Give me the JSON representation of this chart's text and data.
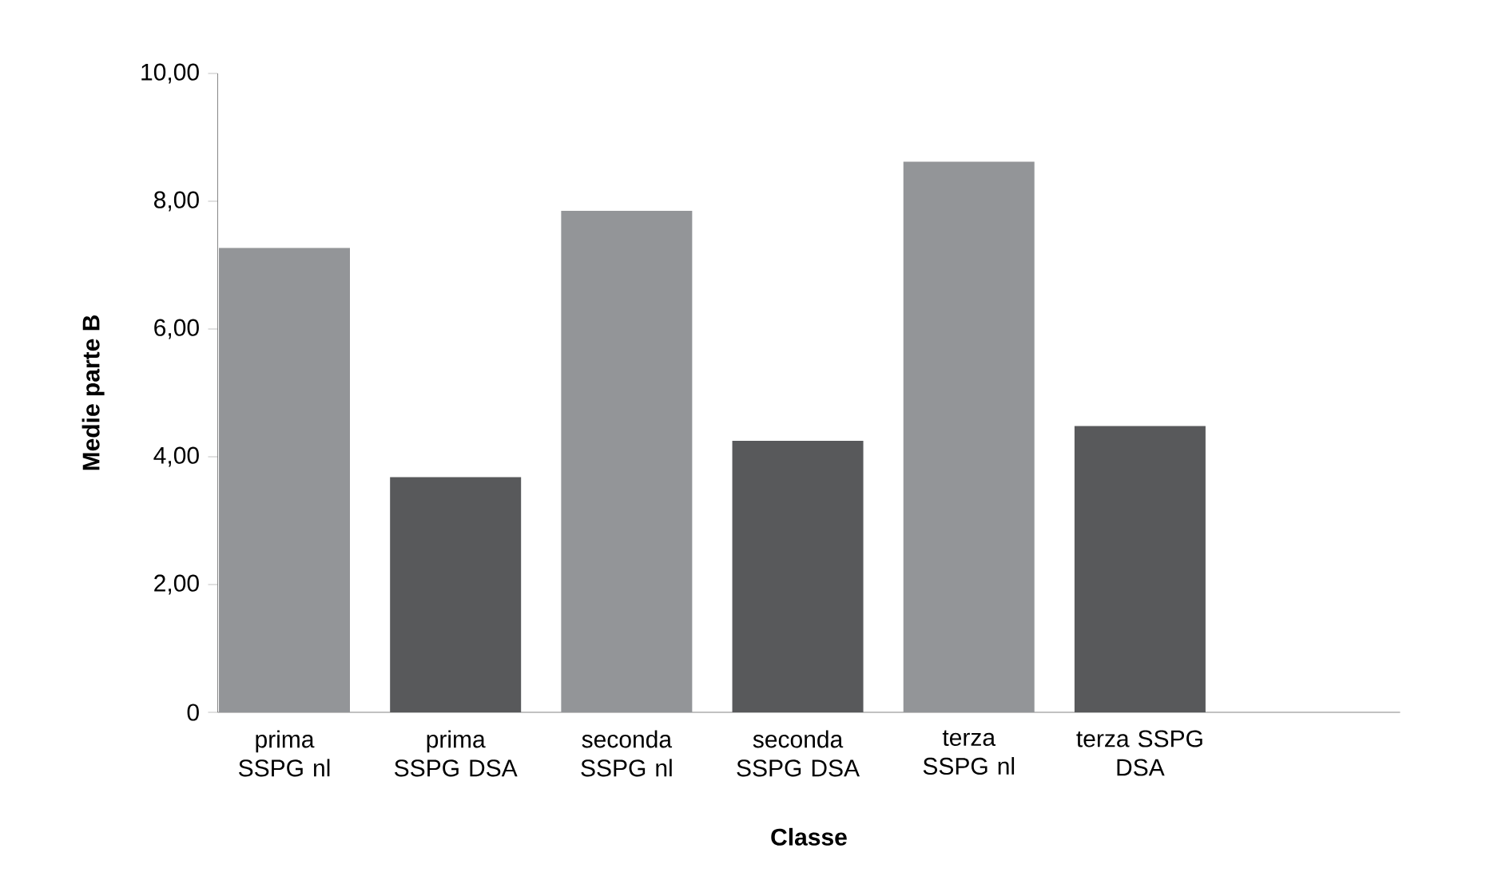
{
  "chart_data": {
    "type": "bar",
    "xlabel": "Classe",
    "ylabel": "Medie parte B",
    "categories": [
      "prima SSPG nl",
      "prima SSPG DSA",
      "seconda SSPG nl",
      "seconda SSPG DSA",
      "terza SSPG nl",
      "terza SSPG DSA"
    ],
    "values": [
      7.27,
      3.68,
      7.85,
      4.25,
      8.62,
      4.48
    ],
    "colors": [
      "#939598",
      "#58595b",
      "#939598",
      "#58595b",
      "#939598",
      "#58595b"
    ],
    "ylim": [
      0,
      10
    ],
    "yticks": [
      {
        "value": 0,
        "label": "0"
      },
      {
        "value": 2,
        "label": "2,00"
      },
      {
        "value": 4,
        "label": "4,00"
      },
      {
        "value": 6,
        "label": "6,00"
      },
      {
        "value": 8,
        "label": "8,00"
      },
      {
        "value": 10,
        "label": "10,00"
      }
    ]
  }
}
